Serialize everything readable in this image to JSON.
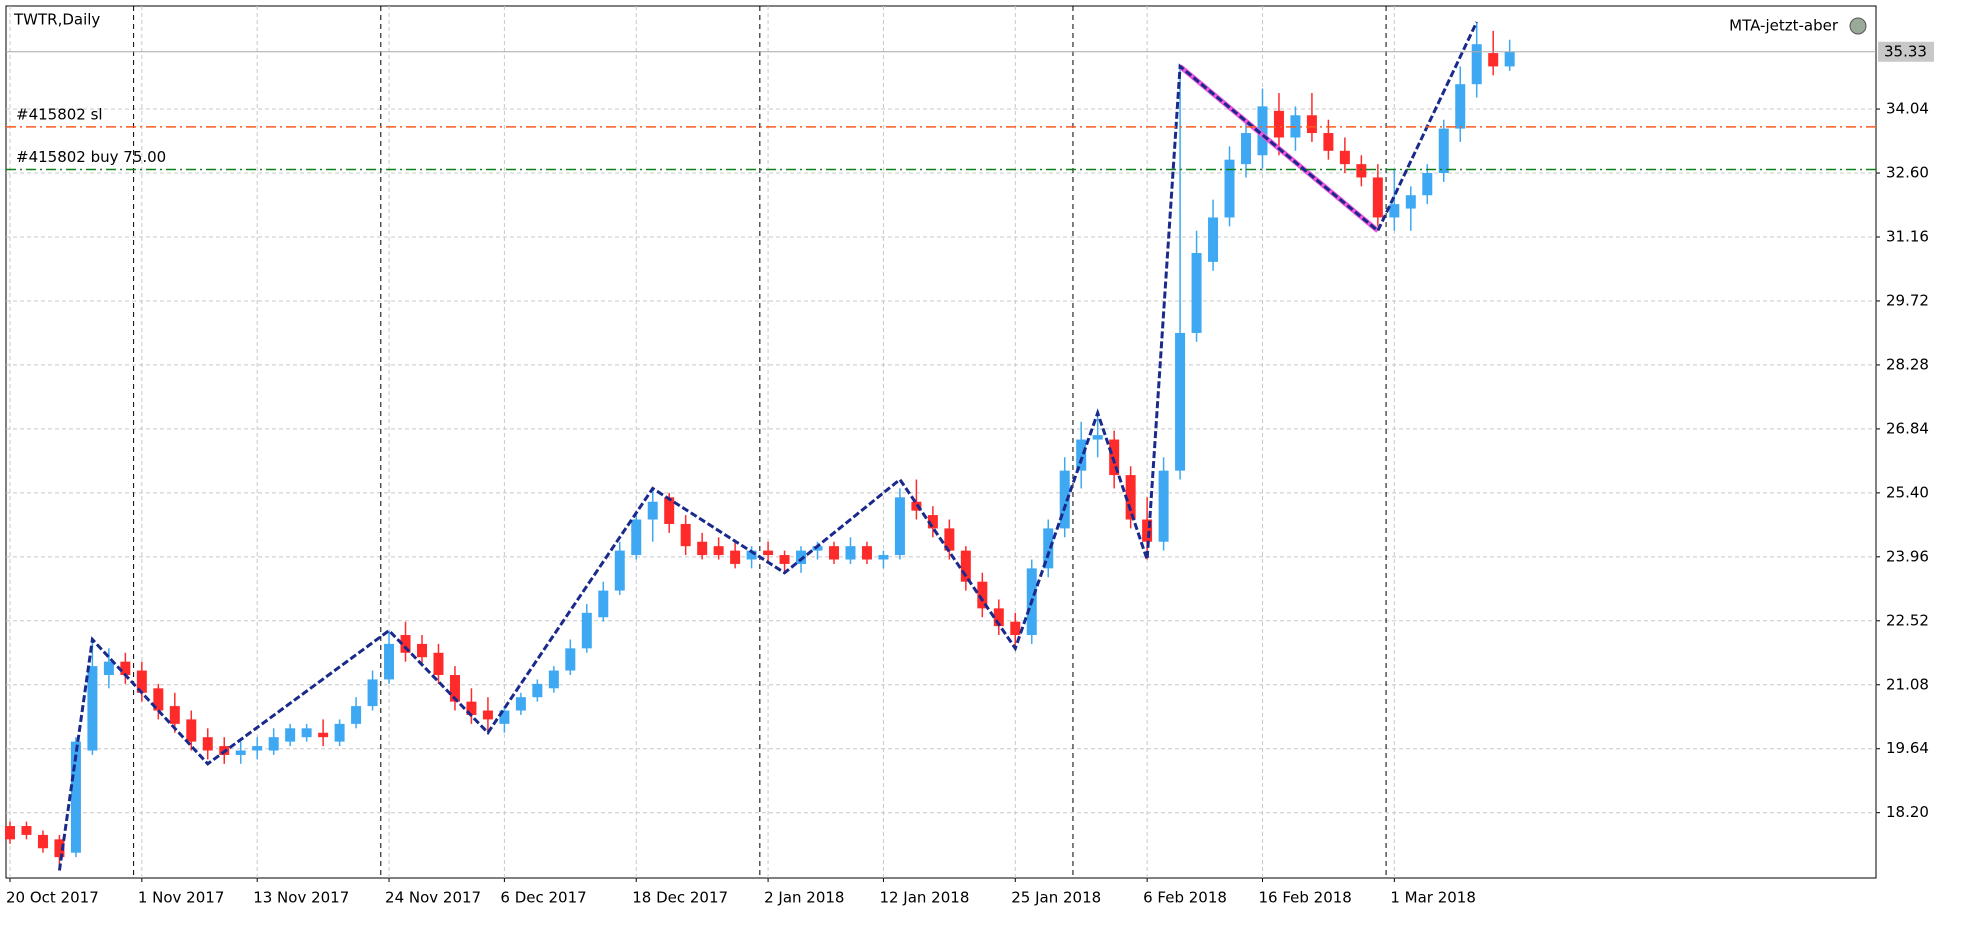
{
  "chart_data": {
    "type": "candlestick",
    "title": "TWTR,Daily",
    "indicator": "MTA-jetzt-aber",
    "categories": [
      "20 Oct 2017",
      null,
      null,
      null,
      null,
      null,
      null,
      null,
      "1 Nov 2017",
      null,
      null,
      null,
      null,
      null,
      null,
      "13 Nov 2017",
      null,
      null,
      null,
      null,
      null,
      null,
      null,
      "24 Nov 2017",
      null,
      null,
      null,
      null,
      null,
      null,
      "6 Dec 2017",
      null,
      null,
      null,
      null,
      null,
      null,
      null,
      "18 Dec 2017",
      null,
      null,
      null,
      null,
      null,
      null,
      null,
      "2 Jan 2018",
      null,
      null,
      null,
      null,
      null,
      null,
      "12 Jan 2018",
      null,
      null,
      null,
      null,
      null,
      null,
      null,
      "25 Jan 2018",
      null,
      null,
      null,
      null,
      null,
      null,
      null,
      "6 Feb 2018",
      null,
      null,
      null,
      null,
      null,
      null,
      "16 Feb 2018",
      null,
      null,
      null,
      null,
      null,
      null,
      null,
      "1 Mar 2018",
      null,
      null,
      null,
      null,
      null,
      null,
      null
    ],
    "open": [
      17.9,
      17.9,
      17.7,
      17.6,
      17.3,
      19.6,
      21.3,
      21.6,
      21.4,
      21.0,
      20.6,
      20.3,
      19.9,
      19.7,
      19.5,
      19.6,
      19.6,
      19.8,
      19.9,
      20.0,
      19.8,
      20.2,
      20.6,
      21.2,
      22.2,
      22.0,
      21.8,
      21.3,
      20.7,
      20.5,
      20.2,
      20.5,
      20.8,
      21.0,
      21.4,
      21.9,
      22.6,
      23.2,
      24.0,
      24.8,
      25.3,
      24.7,
      24.3,
      24.2,
      24.1,
      23.9,
      24.1,
      24.0,
      23.8,
      24.1,
      24.2,
      23.9,
      24.2,
      23.9,
      24.0,
      25.2,
      24.9,
      24.6,
      24.1,
      23.4,
      22.8,
      22.5,
      22.2,
      23.7,
      24.6,
      25.9,
      26.6,
      26.6,
      25.8,
      24.8,
      24.3,
      25.9,
      29.0,
      30.6,
      31.6,
      32.8,
      33.0,
      34.0,
      33.4,
      33.9,
      33.5,
      33.1,
      32.8,
      32.5,
      31.6,
      31.8,
      32.1,
      32.6,
      33.6,
      34.6,
      35.3,
      35.0
    ],
    "high": [
      18.0,
      18.0,
      17.8,
      17.7,
      19.9,
      22.1,
      21.9,
      21.8,
      21.6,
      21.1,
      20.9,
      20.5,
      20.1,
      19.9,
      19.8,
      19.9,
      20.1,
      20.2,
      20.2,
      20.3,
      20.3,
      20.8,
      21.4,
      22.3,
      22.5,
      22.2,
      22.0,
      21.5,
      21.0,
      20.8,
      20.6,
      20.9,
      21.2,
      21.5,
      22.1,
      22.9,
      23.4,
      24.3,
      25.0,
      25.5,
      25.4,
      24.9,
      24.5,
      24.4,
      24.3,
      24.2,
      24.3,
      24.1,
      24.2,
      24.3,
      24.3,
      24.4,
      24.3,
      24.1,
      25.5,
      25.7,
      25.1,
      24.8,
      24.2,
      23.6,
      23.0,
      22.7,
      23.9,
      24.8,
      26.2,
      27.0,
      27.2,
      26.8,
      26.0,
      25.3,
      26.2,
      35.0,
      31.3,
      32.0,
      33.2,
      33.8,
      34.5,
      34.4,
      34.1,
      34.4,
      33.8,
      33.4,
      33.0,
      32.8,
      32.7,
      32.3,
      32.8,
      33.8,
      35.0,
      36.0,
      35.8,
      35.6
    ],
    "low": [
      17.5,
      17.6,
      17.3,
      16.9,
      17.2,
      19.5,
      21.0,
      21.1,
      20.7,
      20.3,
      20.0,
      19.6,
      19.4,
      19.3,
      19.3,
      19.4,
      19.5,
      19.7,
      19.8,
      19.7,
      19.7,
      20.1,
      20.5,
      21.1,
      21.6,
      21.5,
      21.1,
      20.5,
      20.2,
      20.0,
      20.0,
      20.4,
      20.7,
      20.9,
      21.3,
      21.8,
      22.5,
      23.1,
      23.9,
      24.3,
      24.5,
      24.0,
      23.9,
      23.9,
      23.7,
      23.7,
      23.8,
      23.6,
      23.6,
      23.9,
      23.8,
      23.8,
      23.8,
      23.7,
      23.9,
      24.8,
      24.4,
      23.9,
      23.2,
      22.6,
      22.2,
      21.9,
      22.0,
      23.5,
      24.4,
      25.5,
      26.2,
      25.5,
      24.6,
      23.9,
      24.1,
      25.7,
      28.8,
      30.4,
      31.4,
      32.5,
      32.7,
      33.0,
      33.1,
      33.3,
      32.9,
      32.6,
      32.3,
      31.4,
      31.3,
      31.3,
      31.9,
      32.4,
      33.3,
      34.3,
      34.8,
      34.9
    ],
    "close": [
      17.6,
      17.7,
      17.4,
      17.2,
      19.8,
      21.5,
      21.6,
      21.3,
      20.9,
      20.5,
      20.2,
      19.8,
      19.6,
      19.5,
      19.6,
      19.7,
      19.9,
      20.1,
      20.1,
      19.9,
      20.2,
      20.6,
      21.2,
      22.0,
      21.8,
      21.7,
      21.3,
      20.7,
      20.4,
      20.3,
      20.5,
      20.8,
      21.1,
      21.4,
      21.9,
      22.7,
      23.2,
      24.1,
      24.8,
      25.2,
      24.7,
      24.2,
      24.0,
      24.0,
      23.8,
      24.1,
      24.0,
      23.8,
      24.1,
      24.2,
      23.9,
      24.2,
      23.9,
      24.0,
      25.3,
      25.0,
      24.6,
      24.1,
      23.4,
      22.8,
      22.4,
      22.2,
      23.7,
      24.6,
      25.9,
      26.6,
      26.7,
      25.8,
      24.8,
      24.3,
      25.9,
      29.0,
      30.8,
      31.6,
      32.9,
      33.5,
      34.1,
      33.4,
      33.9,
      33.5,
      33.1,
      32.8,
      32.5,
      31.6,
      31.9,
      32.1,
      32.6,
      33.6,
      34.6,
      35.5,
      35.0,
      35.33
    ],
    "colors": {
      "up": "#3ea8f2",
      "down": "#ff2b2b",
      "wick_up": "#3ea8f2",
      "wick_down": "#ff2b2b"
    },
    "ylim": [
      16.73,
      36.36
    ],
    "yticks": [
      {
        "value": 18.2,
        "label": "18.20"
      },
      19.64,
      21.08,
      22.52,
      23.96,
      {
        "value": 25.4,
        "label": "25.40"
      },
      26.84,
      28.28,
      29.72,
      31.16,
      {
        "value": 32.6,
        "label": "32.60"
      },
      34.04
    ],
    "last_price": 35.33,
    "grid": true,
    "period_separators": [
      8,
      23,
      46,
      65,
      84
    ],
    "trade_lines": [
      {
        "label": "#415802 sl",
        "value": 33.64,
        "color": "#ff5a1f"
      },
      {
        "label": "#415802 buy 75.00",
        "value": 32.68,
        "color": "#11801a"
      }
    ],
    "zigzag": {
      "color": "#1a2a8c",
      "x": [
        3,
        5,
        12,
        23,
        29,
        39,
        47,
        54,
        61,
        66,
        69,
        71,
        83,
        89
      ],
      "y": [
        16.9,
        22.1,
        19.3,
        22.3,
        20.0,
        25.5,
        23.6,
        25.7,
        21.9,
        27.2,
        23.9,
        35.0,
        31.3,
        36.0
      ]
    },
    "trend_segment": {
      "color": "#ee55dd",
      "x": [
        71,
        83
      ],
      "y": [
        35.0,
        31.3
      ]
    }
  }
}
